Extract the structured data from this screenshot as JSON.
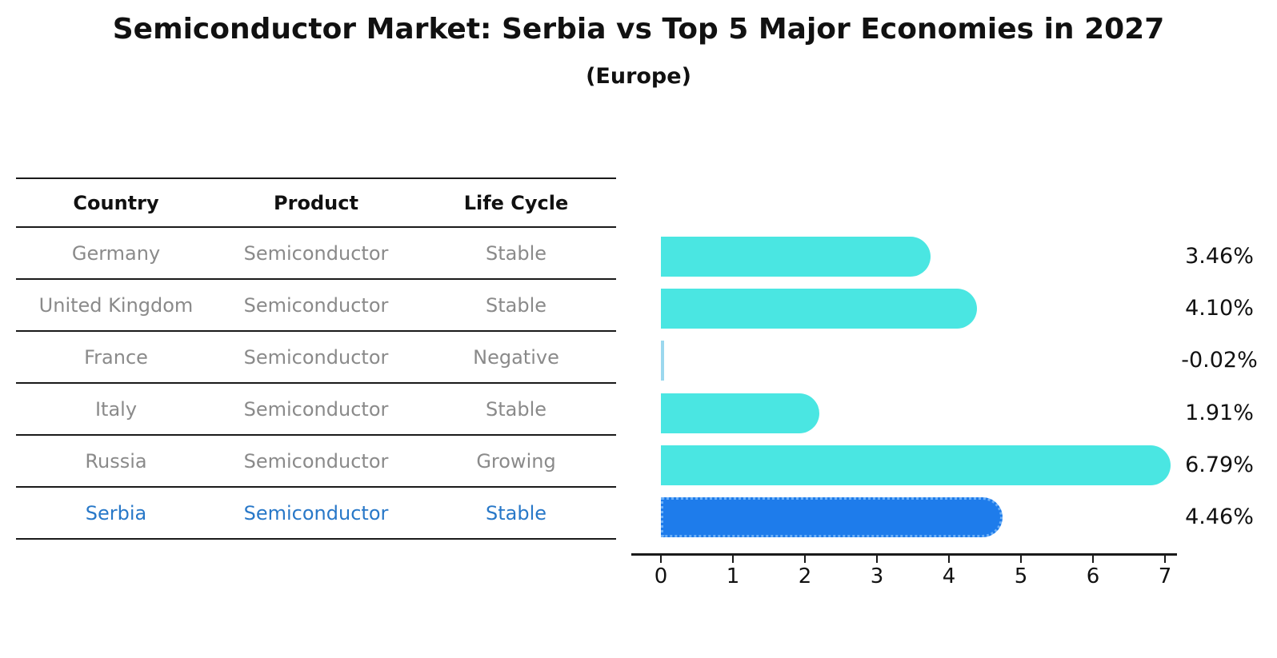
{
  "title": "Semiconductor Market: Serbia vs Top 5 Major Economies in 2027",
  "subtitle": "(Europe)",
  "table": {
    "headers": [
      "Country",
      "Product",
      "Life Cycle"
    ],
    "rows": [
      {
        "country": "Germany",
        "product": "Semiconductor",
        "life_cycle": "Stable",
        "highlight": false
      },
      {
        "country": "United Kingdom",
        "product": "Semiconductor",
        "life_cycle": "Stable",
        "highlight": false
      },
      {
        "country": "France",
        "product": "Semiconductor",
        "life_cycle": "Negative",
        "highlight": false
      },
      {
        "country": "Italy",
        "product": "Semiconductor",
        "life_cycle": "Stable",
        "highlight": false
      },
      {
        "country": "Russia",
        "product": "Semiconductor",
        "life_cycle": "Growing",
        "highlight": false
      },
      {
        "country": "Serbia",
        "product": "Semiconductor",
        "life_cycle": "Stable",
        "highlight": true
      }
    ]
  },
  "chart_data": {
    "type": "bar",
    "orientation": "horizontal",
    "categories": [
      "Germany",
      "United Kingdom",
      "France",
      "Italy",
      "Russia",
      "Serbia"
    ],
    "values": [
      3.46,
      4.1,
      -0.02,
      1.91,
      6.79,
      4.46
    ],
    "value_labels": [
      "3.46%",
      "4.10%",
      "-0.02%",
      "1.91%",
      "6.79%",
      "4.46%"
    ],
    "xlim": [
      0,
      7
    ],
    "x_ticks": [
      "0",
      "1",
      "2",
      "3",
      "4",
      "5",
      "6",
      "7"
    ],
    "grid": false,
    "legend": "none",
    "highlight_index": 5
  },
  "colors": {
    "bar": "#4ae6e2",
    "tiny_bar": "#9bd8ee",
    "highlight_bar": "#1e7ceb",
    "highlight_border": "#6db0f8",
    "table_text": "#8a8a8a",
    "highlight_text": "#2878c8",
    "axis": "#1a1a1a"
  }
}
